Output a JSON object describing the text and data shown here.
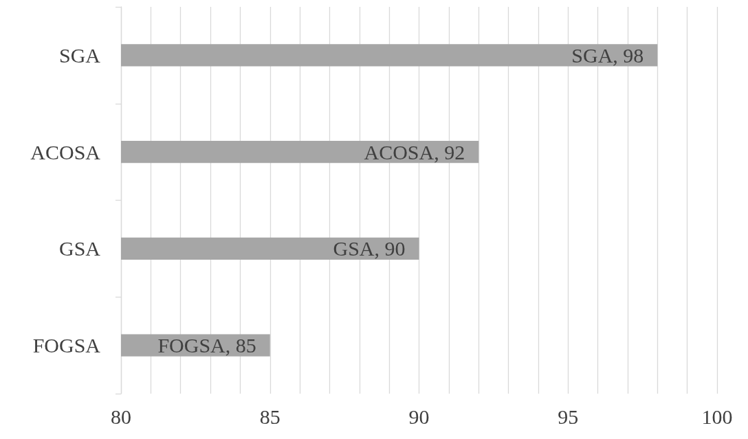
{
  "chart_data": {
    "type": "bar",
    "orientation": "horizontal",
    "categories": [
      "SGA",
      "ACOSA",
      "GSA",
      "FOGSA"
    ],
    "values": [
      98,
      92,
      90,
      85
    ],
    "color": "#a6a6a6",
    "value_labels": [
      "SGA, 98",
      "ACOSA, 92",
      "GSA, 90",
      "FOGSA, 85"
    ],
    "xlim": [
      80,
      100
    ],
    "xticks": [
      80,
      {
        "value": 81,
        "label": null
      },
      {
        "value": 82,
        "label": null
      },
      {
        "value": 83,
        "label": null
      },
      {
        "value": 84,
        "label": null
      },
      85,
      {
        "value": 86,
        "label": null
      },
      {
        "value": 87,
        "label": null
      },
      {
        "value": 88,
        "label": null
      },
      {
        "value": 89,
        "label": null
      },
      90,
      {
        "value": 91,
        "label": null
      },
      {
        "value": 92,
        "label": null
      },
      {
        "value": 93,
        "label": null
      },
      {
        "value": 94,
        "label": null
      },
      95,
      {
        "value": 96,
        "label": null
      },
      {
        "value": 97,
        "label": null
      },
      {
        "value": 98,
        "label": null
      },
      {
        "value": 99,
        "label": null
      },
      100
    ],
    "grid": "x"
  }
}
